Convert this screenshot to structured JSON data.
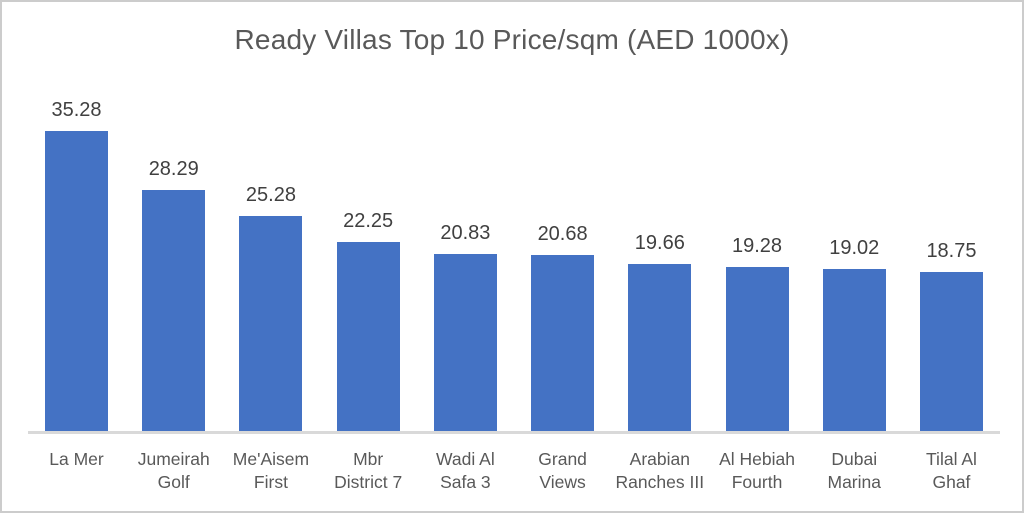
{
  "chart_data": {
    "type": "bar",
    "title": "Ready Villas Top 10 Price/sqm (AED 1000x)",
    "categories": [
      "La Mer",
      "Jumeirah\nGolf",
      "Me'Aisem\nFirst",
      "Mbr\nDistrict 7",
      "Wadi Al\nSafa 3",
      "Grand\nViews",
      "Arabian\nRanches III",
      "Al Hebiah\nFourth",
      "Dubai\nMarina",
      "Tilal Al\nGhaf"
    ],
    "values": [
      35.28,
      28.29,
      25.28,
      22.25,
      20.83,
      20.68,
      19.66,
      19.28,
      19.02,
      18.75
    ],
    "data_labels": [
      "35.28",
      "28.29",
      "25.28",
      "22.25",
      "20.83",
      "20.68",
      "19.66",
      "19.28",
      "19.02",
      "18.75"
    ],
    "xlabel": "",
    "ylabel": "",
    "ylim": [
      0,
      38
    ],
    "grid": false,
    "legend": false,
    "data_labels_shown": true
  },
  "colors": {
    "bar_fill": "#4472C4",
    "title_text": "#595959",
    "value_label_text": "#404040",
    "axis_label_text": "#595959",
    "axis_line": "#d9d9d9",
    "background": "#ffffff",
    "frame_border": "#cccccc"
  }
}
